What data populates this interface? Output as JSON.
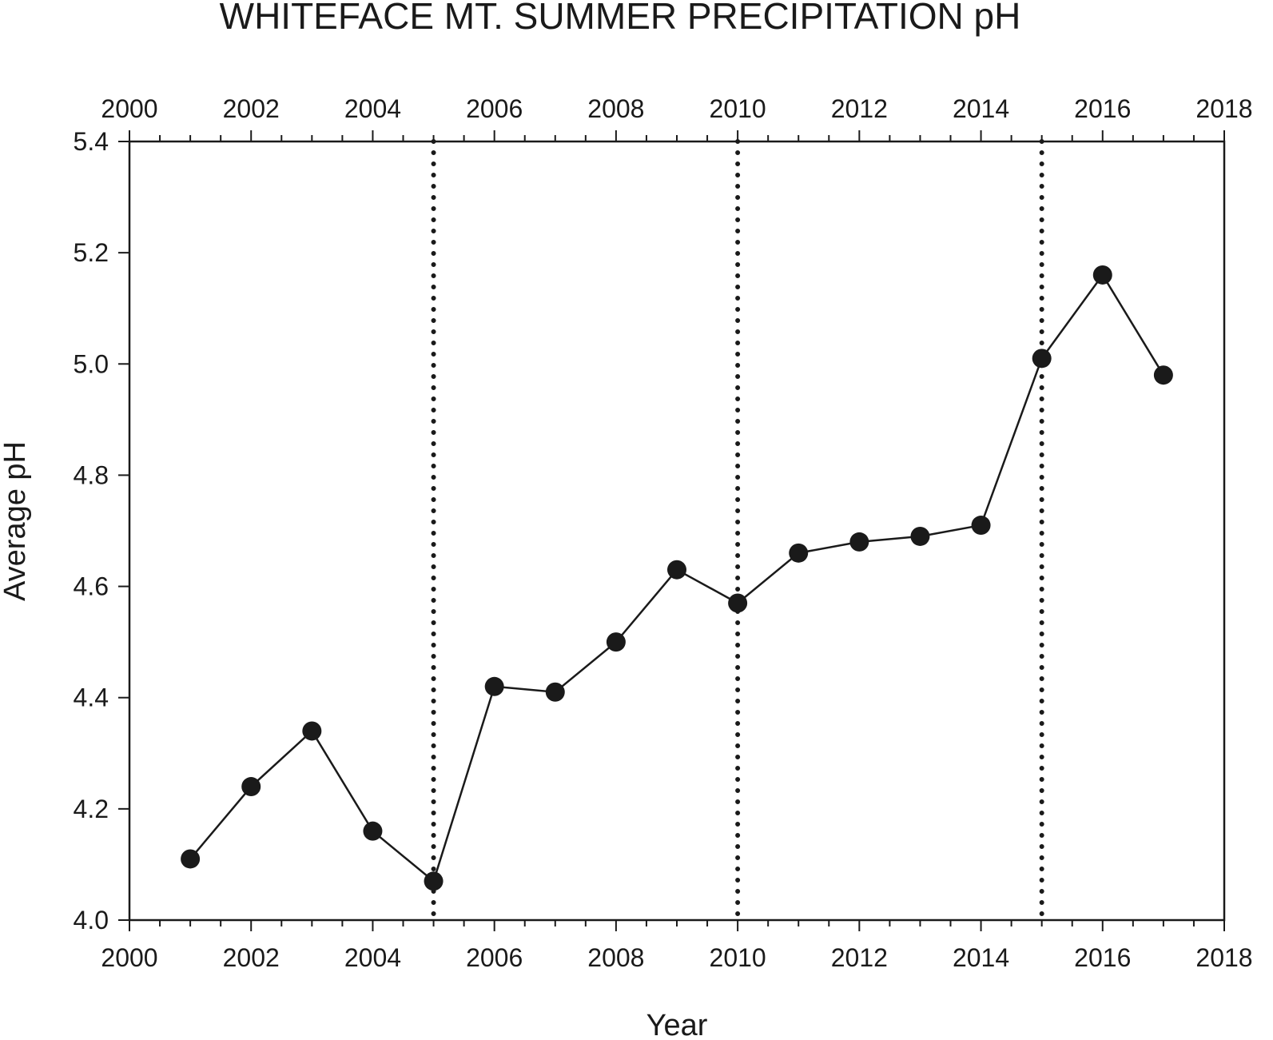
{
  "chart_data": {
    "type": "line",
    "title": "WHITEFACE MT. SUMMER PRECIPITATION pH",
    "xlabel": "Year",
    "ylabel": "Average pH",
    "xlim": [
      2000,
      2018
    ],
    "ylim": [
      4.0,
      5.4
    ],
    "x_ticks": [
      2000,
      2002,
      2004,
      2006,
      2008,
      2010,
      2012,
      2014,
      2016,
      2018
    ],
    "x_tick_labels": [
      "2000",
      "2002",
      "2004",
      "2006",
      "2008",
      "2010",
      "2012",
      "2014",
      "2016",
      "2018"
    ],
    "y_ticks": [
      4.0,
      4.2,
      4.4,
      4.6,
      4.8,
      5.0,
      5.2,
      5.4
    ],
    "y_tick_labels": [
      "4.0",
      "4.2",
      "4.4",
      "4.6",
      "4.8",
      "5.0",
      "5.2",
      "5.4"
    ],
    "top_axis_mirrors_bottom": true,
    "grid": false,
    "legend": "none",
    "series": [
      {
        "x": [
          2001,
          2002,
          2003,
          2004,
          2005,
          2006,
          2007,
          2008,
          2009,
          2010,
          2011,
          2012,
          2013,
          2014,
          2015,
          2016,
          2017
        ],
        "y": [
          4.11,
          4.24,
          4.34,
          4.16,
          4.07,
          4.42,
          4.41,
          4.5,
          4.63,
          4.57,
          4.66,
          4.68,
          4.69,
          4.71,
          5.01,
          5.16,
          4.98
        ],
        "color": "#1a1a1a",
        "marker": "filled-circle"
      }
    ],
    "reference_lines": {
      "orientation": "vertical",
      "style": "dotted",
      "x": [
        2005,
        2010,
        2015
      ]
    }
  }
}
